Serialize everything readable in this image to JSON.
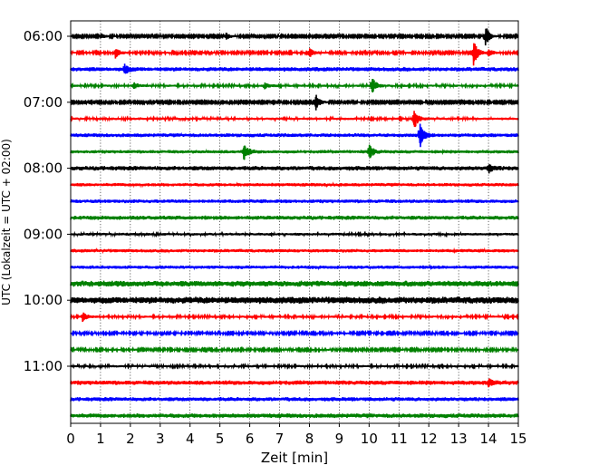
{
  "chart_data": {
    "type": "line",
    "title": "",
    "xlabel": "Zeit  [min]",
    "ylabel": "UTC (Lokalzeit = UTC + 02:00)",
    "xlim": [
      0,
      15
    ],
    "x_ticks": [
      "0",
      "1",
      "2",
      "3",
      "4",
      "5",
      "6",
      "7",
      "8",
      "9",
      "10",
      "11",
      "12",
      "13",
      "14",
      "15"
    ],
    "y_ticks": [
      "06:00",
      "07:00",
      "08:00",
      "09:00",
      "10:00",
      "11:00"
    ],
    "grid": "vertical-dotted",
    "trace_colors": [
      "#000000",
      "#ff0000",
      "#0000ff",
      "#008000"
    ],
    "series": [
      {
        "start": "06:00",
        "color": "#000000",
        "noise": 1.0,
        "events": [
          [
            1.0,
            3
          ],
          [
            5.2,
            4
          ],
          [
            13.9,
            12
          ]
        ]
      },
      {
        "start": "06:15",
        "color": "#ff0000",
        "noise": 1.2,
        "events": [
          [
            1.5,
            6
          ],
          [
            8.0,
            6
          ],
          [
            13.5,
            14
          ],
          [
            14.0,
            4
          ]
        ]
      },
      {
        "start": "06:30",
        "color": "#0000ff",
        "noise": 2.5,
        "events": [
          [
            1.8,
            5
          ]
        ]
      },
      {
        "start": "06:45",
        "color": "#008000",
        "noise": 1.4,
        "events": [
          [
            2.1,
            4
          ],
          [
            6.5,
            3
          ],
          [
            10.1,
            10
          ]
        ]
      },
      {
        "start": "07:00",
        "color": "#000000",
        "noise": 1.0,
        "events": [
          [
            8.2,
            10
          ]
        ]
      },
      {
        "start": "07:15",
        "color": "#ff0000",
        "noise": 1.5,
        "events": [
          [
            11.5,
            12
          ]
        ]
      },
      {
        "start": "07:30",
        "color": "#0000ff",
        "noise": 2.2,
        "events": [
          [
            11.7,
            14
          ]
        ]
      },
      {
        "start": "07:45",
        "color": "#008000",
        "noise": 2.0,
        "events": [
          [
            5.8,
            9
          ],
          [
            10.0,
            8
          ]
        ]
      },
      {
        "start": "08:00",
        "color": "#000000",
        "noise": 2.6,
        "events": [
          [
            14.0,
            4
          ]
        ]
      },
      {
        "start": "08:15",
        "color": "#ff0000",
        "noise": 2.0,
        "events": []
      },
      {
        "start": "08:30",
        "color": "#0000ff",
        "noise": 2.2,
        "events": []
      },
      {
        "start": "08:45",
        "color": "#008000",
        "noise": 2.4,
        "events": []
      },
      {
        "start": "09:00",
        "color": "#000000",
        "noise": 1.6,
        "events": []
      },
      {
        "start": "09:15",
        "color": "#ff0000",
        "noise": 2.0,
        "events": []
      },
      {
        "start": "09:30",
        "color": "#0000ff",
        "noise": 2.0,
        "events": []
      },
      {
        "start": "09:45",
        "color": "#008000",
        "noise": 3.4,
        "events": []
      },
      {
        "start": "10:00",
        "color": "#000000",
        "noise": 4.0,
        "events": []
      },
      {
        "start": "10:15",
        "color": "#ff0000",
        "noise": 1.4,
        "events": [
          [
            0.4,
            5
          ]
        ]
      },
      {
        "start": "10:30",
        "color": "#0000ff",
        "noise": 1.2,
        "events": []
      },
      {
        "start": "10:45",
        "color": "#008000",
        "noise": 1.2,
        "events": []
      },
      {
        "start": "11:00",
        "color": "#000000",
        "noise": 1.4,
        "events": []
      },
      {
        "start": "11:15",
        "color": "#ff0000",
        "noise": 2.6,
        "events": [
          [
            14.0,
            4
          ]
        ]
      },
      {
        "start": "11:30",
        "color": "#0000ff",
        "noise": 2.4,
        "events": []
      },
      {
        "start": "11:45",
        "color": "#008000",
        "noise": 2.6,
        "events": []
      }
    ]
  }
}
